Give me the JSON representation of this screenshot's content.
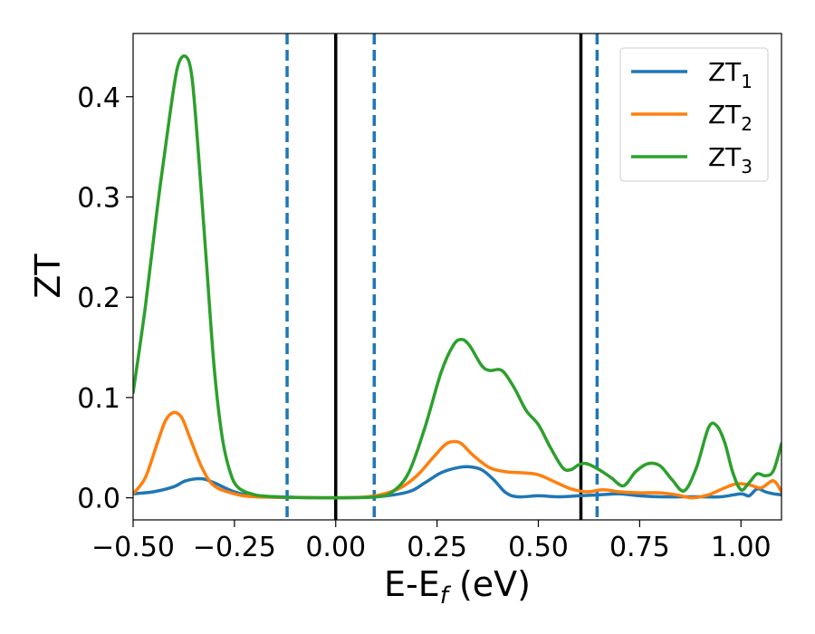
{
  "chart_data": {
    "type": "line",
    "title": "",
    "xlabel": {
      "main": "E-E",
      "sub": "f",
      "unit": " (eV)"
    },
    "ylabel": "ZT",
    "xlim": [
      -0.5,
      1.1
    ],
    "ylim": [
      -0.022,
      0.463
    ],
    "grid": false,
    "legend_position": "top-right",
    "x_ticks": [
      -0.5,
      -0.25,
      0.0,
      0.25,
      0.5,
      0.75,
      1.0
    ],
    "x_tick_labels": [
      "−0.50",
      "−0.25",
      "0.00",
      "0.25",
      "0.50",
      "0.75",
      "1.00"
    ],
    "y_ticks": [
      0.0,
      0.1,
      0.2,
      0.3,
      0.4
    ],
    "y_tick_labels": [
      "0.0",
      "0.1",
      "0.2",
      "0.3",
      "0.4"
    ],
    "vertical_lines": [
      {
        "x": -0.12,
        "style": "dashed",
        "color": "#1f77b4"
      },
      {
        "x": 0.0,
        "style": "solid",
        "color": "#000000"
      },
      {
        "x": 0.095,
        "style": "dashed",
        "color": "#1f77b4"
      },
      {
        "x": 0.605,
        "style": "solid",
        "color": "#000000"
      },
      {
        "x": 0.645,
        "style": "dashed",
        "color": "#1f77b4"
      }
    ],
    "series": [
      {
        "name": "ZT",
        "sub": "1",
        "color": "#1f77b4",
        "points": [
          [
            -0.5,
            0.004
          ],
          [
            -0.45,
            0.006
          ],
          [
            -0.4,
            0.011
          ],
          [
            -0.37,
            0.017
          ],
          [
            -0.33,
            0.019
          ],
          [
            -0.3,
            0.015
          ],
          [
            -0.25,
            0.006
          ],
          [
            -0.2,
            0.002
          ],
          [
            -0.1,
            0.0005
          ],
          [
            0.0,
            0.0
          ],
          [
            0.1,
            0.001
          ],
          [
            0.18,
            0.006
          ],
          [
            0.22,
            0.015
          ],
          [
            0.26,
            0.025
          ],
          [
            0.3,
            0.03
          ],
          [
            0.33,
            0.031
          ],
          [
            0.36,
            0.028
          ],
          [
            0.39,
            0.018
          ],
          [
            0.42,
            0.005
          ],
          [
            0.45,
            0.001
          ],
          [
            0.5,
            0.002
          ],
          [
            0.55,
            0.001
          ],
          [
            0.6,
            0.002
          ],
          [
            0.65,
            0.003
          ],
          [
            0.7,
            0.004
          ],
          [
            0.75,
            0.002
          ],
          [
            0.8,
            0.001
          ],
          [
            0.85,
            0.001
          ],
          [
            0.9,
            0.001
          ],
          [
            0.95,
            0.001
          ],
          [
            1.0,
            0.004
          ],
          [
            1.02,
            0.002
          ],
          [
            1.04,
            0.009
          ],
          [
            1.06,
            0.006
          ],
          [
            1.08,
            0.004
          ],
          [
            1.1,
            0.003
          ]
        ]
      },
      {
        "name": "ZT",
        "sub": "2",
        "color": "#ff7f0e",
        "points": [
          [
            -0.5,
            0.004
          ],
          [
            -0.47,
            0.02
          ],
          [
            -0.44,
            0.055
          ],
          [
            -0.42,
            0.077
          ],
          [
            -0.4,
            0.085
          ],
          [
            -0.38,
            0.08
          ],
          [
            -0.36,
            0.06
          ],
          [
            -0.33,
            0.03
          ],
          [
            -0.3,
            0.012
          ],
          [
            -0.25,
            0.004
          ],
          [
            -0.2,
            0.001
          ],
          [
            -0.1,
            0.0003
          ],
          [
            0.0,
            0.0
          ],
          [
            0.08,
            0.001
          ],
          [
            0.12,
            0.004
          ],
          [
            0.16,
            0.01
          ],
          [
            0.2,
            0.022
          ],
          [
            0.24,
            0.04
          ],
          [
            0.27,
            0.053
          ],
          [
            0.29,
            0.056
          ],
          [
            0.31,
            0.054
          ],
          [
            0.34,
            0.042
          ],
          [
            0.38,
            0.03
          ],
          [
            0.42,
            0.026
          ],
          [
            0.46,
            0.025
          ],
          [
            0.5,
            0.023
          ],
          [
            0.54,
            0.016
          ],
          [
            0.58,
            0.009
          ],
          [
            0.62,
            0.006
          ],
          [
            0.66,
            0.008
          ],
          [
            0.7,
            0.006
          ],
          [
            0.75,
            0.005
          ],
          [
            0.8,
            0.005
          ],
          [
            0.84,
            0.003
          ],
          [
            0.88,
            0.0
          ],
          [
            0.92,
            0.003
          ],
          [
            0.96,
            0.01
          ],
          [
            0.99,
            0.014
          ],
          [
            1.02,
            0.013
          ],
          [
            1.05,
            0.01
          ],
          [
            1.08,
            0.017
          ],
          [
            1.1,
            0.006
          ]
        ]
      },
      {
        "name": "ZT",
        "sub": "3",
        "color": "#2ca02c",
        "points": [
          [
            -0.5,
            0.105
          ],
          [
            -0.47,
            0.19
          ],
          [
            -0.44,
            0.29
          ],
          [
            -0.41,
            0.38
          ],
          [
            -0.39,
            0.43
          ],
          [
            -0.37,
            0.44
          ],
          [
            -0.355,
            0.42
          ],
          [
            -0.34,
            0.35
          ],
          [
            -0.32,
            0.24
          ],
          [
            -0.3,
            0.13
          ],
          [
            -0.28,
            0.06
          ],
          [
            -0.26,
            0.025
          ],
          [
            -0.24,
            0.01
          ],
          [
            -0.2,
            0.003
          ],
          [
            -0.15,
            0.001
          ],
          [
            -0.1,
            0.0003
          ],
          [
            0.0,
            0.0
          ],
          [
            0.1,
            0.001
          ],
          [
            0.14,
            0.006
          ],
          [
            0.18,
            0.025
          ],
          [
            0.22,
            0.07
          ],
          [
            0.26,
            0.125
          ],
          [
            0.29,
            0.152
          ],
          [
            0.31,
            0.158
          ],
          [
            0.33,
            0.152
          ],
          [
            0.36,
            0.132
          ],
          [
            0.38,
            0.127
          ],
          [
            0.41,
            0.127
          ],
          [
            0.44,
            0.11
          ],
          [
            0.47,
            0.087
          ],
          [
            0.5,
            0.073
          ],
          [
            0.53,
            0.05
          ],
          [
            0.56,
            0.03
          ],
          [
            0.58,
            0.028
          ],
          [
            0.6,
            0.033
          ],
          [
            0.62,
            0.034
          ],
          [
            0.65,
            0.028
          ],
          [
            0.68,
            0.02
          ],
          [
            0.71,
            0.012
          ],
          [
            0.74,
            0.026
          ],
          [
            0.77,
            0.034
          ],
          [
            0.8,
            0.032
          ],
          [
            0.83,
            0.018
          ],
          [
            0.86,
            0.007
          ],
          [
            0.89,
            0.03
          ],
          [
            0.92,
            0.07
          ],
          [
            0.94,
            0.072
          ],
          [
            0.96,
            0.055
          ],
          [
            0.98,
            0.025
          ],
          [
            1.0,
            0.008
          ],
          [
            1.02,
            0.015
          ],
          [
            1.04,
            0.024
          ],
          [
            1.06,
            0.022
          ],
          [
            1.08,
            0.027
          ],
          [
            1.1,
            0.054
          ]
        ]
      }
    ]
  }
}
